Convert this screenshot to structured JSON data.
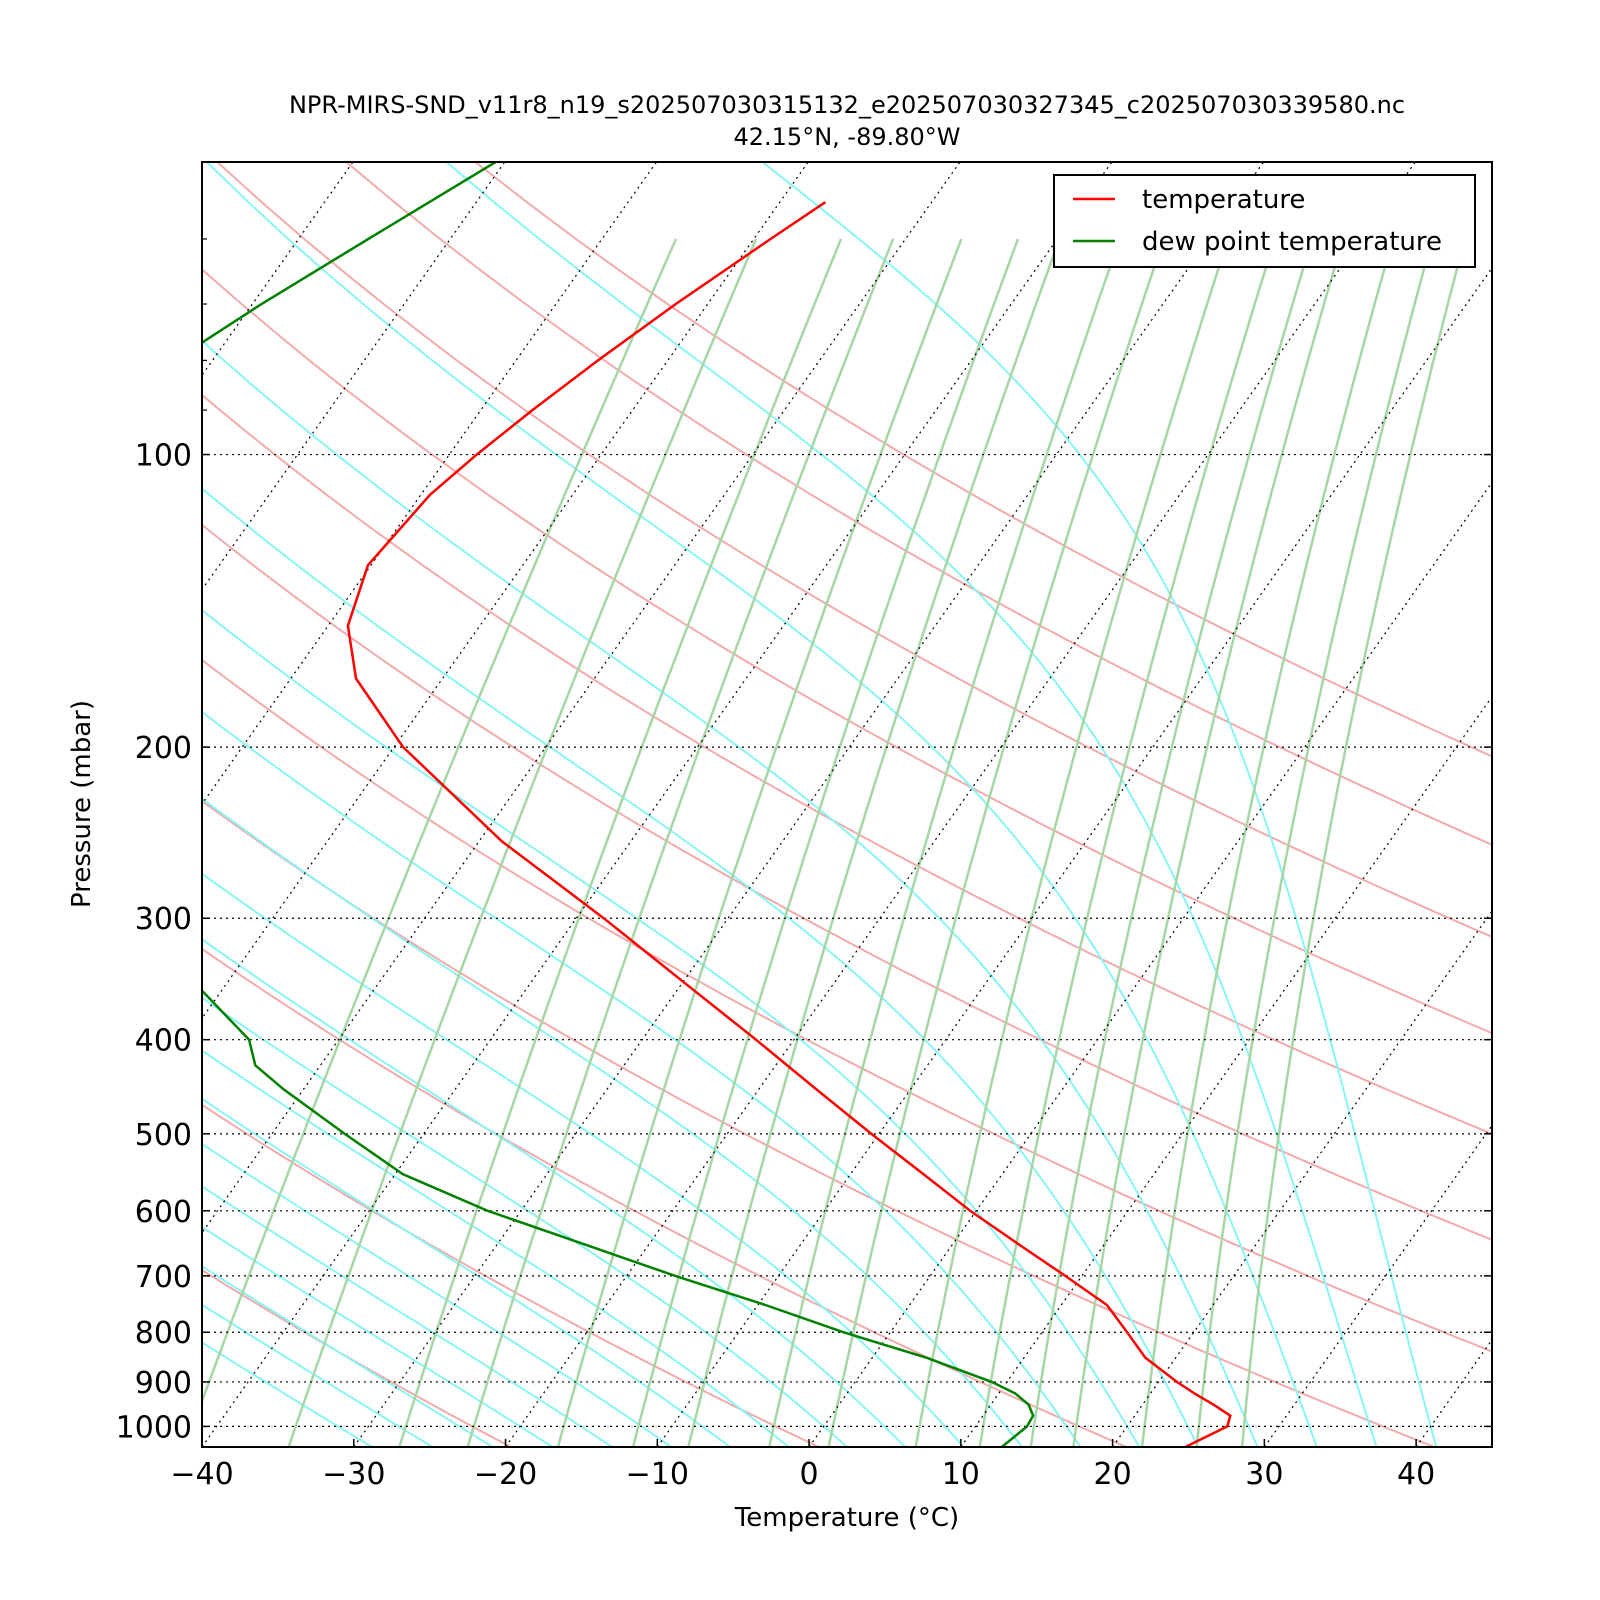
{
  "chart_data": {
    "type": "line",
    "title_line1": "NPR-MIRS-SND_v11r8_n19_s202507030315132_e202507030327345_c202507030339580.nc",
    "title_line2": "42.15°N, -89.80°W",
    "xlabel": "Temperature (°C)",
    "ylabel": "Pressure (mbar)",
    "xlim": [
      -40,
      45
    ],
    "ylim": [
      1050,
      50
    ],
    "y_scale": "log",
    "skew": true,
    "grid": true,
    "x_ticks": [
      "−40",
      "−30",
      "−20",
      "−10",
      "0",
      "10",
      "20",
      "30",
      "40"
    ],
    "y_ticks": [
      "100",
      "200",
      "300",
      "400",
      "500",
      "600",
      "700",
      "800",
      "900",
      "1000"
    ],
    "legend": {
      "position": "top-right",
      "entries": [
        "temperature",
        "dew point temperature"
      ]
    },
    "series": [
      {
        "name": "temperature",
        "color": "#ff0000",
        "pressure": [
          1050,
          1000,
          975,
          950,
          925,
          900,
          850,
          800,
          750,
          700,
          650,
          600,
          550,
          500,
          450,
          400,
          350,
          300,
          250,
          200,
          170,
          150,
          130,
          110,
          100,
          90,
          80,
          70,
          60,
          55
        ],
        "temperature": [
          24.8,
          26.6,
          26.3,
          24.7,
          22.9,
          21.2,
          18.0,
          15.6,
          13.0,
          8.9,
          4.4,
          -0.4,
          -5.2,
          -10.5,
          -16.2,
          -22.5,
          -29.8,
          -38.2,
          -48.5,
          -59.4,
          -65.7,
          -68.7,
          -70.2,
          -69.4,
          -68.2,
          -66.6,
          -64.6,
          -62.1,
          -58.9,
          -57.0
        ]
      },
      {
        "name": "dew point temperature",
        "color": "#008000",
        "pressure": [
          1050,
          1000,
          975,
          950,
          925,
          900,
          850,
          800,
          750,
          700,
          650,
          600,
          550,
          500,
          450,
          425,
          400,
          350,
          300,
          275,
          250,
          225,
          200,
          175,
          150,
          130,
          110,
          100,
          90,
          80,
          70,
          60,
          50
        ],
        "temperature": [
          12.7,
          13.4,
          13.3,
          12.5,
          11.1,
          9.0,
          3.6,
          -3.1,
          -9.5,
          -16.8,
          -24.2,
          -32.2,
          -39.5,
          -45.2,
          -51.3,
          -54.3,
          -55.9,
          -62.1,
          -69.2,
          -73.8,
          -79.0,
          -85.4,
          -91.9,
          -96.4,
          -99.3,
          -99.9,
          -98.6,
          -97.1,
          -95.0,
          -92.5,
          -89.4,
          -85.4,
          -80.6
        ]
      }
    ],
    "background_lines": {
      "dry_adiabats_color": "#f4aaaa",
      "moist_adiabats_color": "#88f5f5",
      "mixing_ratio_color": "#a6d6a6",
      "isotherm_grid": "dotted black"
    }
  }
}
